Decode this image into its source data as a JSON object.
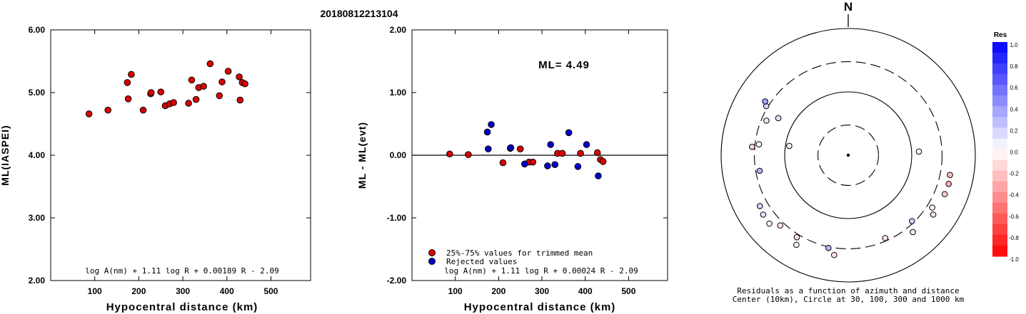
{
  "figure": {
    "title": "20180812213104"
  },
  "chart_data": [
    {
      "type": "scatter",
      "xlabel": "Hypocentral distance (km)",
      "ylabel": "ML(IASPEI)",
      "xlim": [
        0,
        590
      ],
      "ylim": [
        2.0,
        6.0
      ],
      "x_ticks": [
        100,
        200,
        300,
        400,
        500
      ],
      "y_ticks": [
        "2.00",
        "3.00",
        "4.00",
        "5.00",
        "6.00"
      ],
      "grid": false,
      "formula": "log A(nm) + 1.11 log R + 0.00189 R - 2.09",
      "marker_color": "#dd0000",
      "points": [
        [
          87,
          4.66
        ],
        [
          130,
          4.72
        ],
        [
          174,
          5.16
        ],
        [
          176,
          4.9
        ],
        [
          183,
          5.29
        ],
        [
          210,
          4.72
        ],
        [
          227,
          4.98
        ],
        [
          228,
          5.0
        ],
        [
          250,
          5.01
        ],
        [
          260,
          4.79
        ],
        [
          270,
          4.82
        ],
        [
          279,
          4.84
        ],
        [
          313,
          4.83
        ],
        [
          320,
          5.2
        ],
        [
          330,
          4.89
        ],
        [
          336,
          5.08
        ],
        [
          347,
          5.1
        ],
        [
          362,
          5.46
        ],
        [
          383,
          4.95
        ],
        [
          389,
          5.17
        ],
        [
          403,
          5.34
        ],
        [
          428,
          5.25
        ],
        [
          430,
          4.88
        ],
        [
          435,
          5.16
        ],
        [
          441,
          5.14
        ]
      ]
    },
    {
      "type": "scatter",
      "xlabel": "Hypocentral distance (km)",
      "ylabel": "ML - ML(evt)",
      "xlim": [
        0,
        590
      ],
      "ylim": [
        -2.0,
        2.0
      ],
      "x_ticks": [
        100,
        200,
        300,
        400,
        500
      ],
      "y_ticks": [
        "-2.00",
        "-1.00",
        "0.00",
        "1.00",
        "2.00"
      ],
      "grid": false,
      "annotation": "ML= 4.49",
      "formula": "log A(nm) + 1.11 log R + 0.00024 R - 2.09",
      "legend": [
        {
          "label": "25%-75% values for trimmed mean",
          "color": "#dd0000"
        },
        {
          "label": "Rejected values",
          "color": "#0000cc"
        }
      ],
      "series": [
        {
          "name": "25%-75% values for trimmed mean",
          "color": "#dd0000",
          "points": [
            [
              87,
              0.02
            ],
            [
              130,
              0.01
            ],
            [
              210,
              -0.12
            ],
            [
              227,
              0.11
            ],
            [
              250,
              0.1
            ],
            [
              270,
              -0.11
            ],
            [
              279,
              -0.11
            ],
            [
              336,
              0.03
            ],
            [
              347,
              0.03
            ],
            [
              389,
              0.03
            ],
            [
              428,
              0.04
            ],
            [
              435,
              -0.07
            ],
            [
              441,
              -0.1
            ]
          ]
        },
        {
          "name": "Rejected values",
          "color": "#0000cc",
          "points": [
            [
              174,
              0.37
            ],
            [
              176,
              0.1
            ],
            [
              183,
              0.49
            ],
            [
              228,
              0.12
            ],
            [
              260,
              -0.14
            ],
            [
              313,
              -0.17
            ],
            [
              320,
              0.17
            ],
            [
              330,
              -0.15
            ],
            [
              362,
              0.36
            ],
            [
              383,
              -0.18
            ],
            [
              403,
              0.17
            ],
            [
              430,
              -0.33
            ]
          ]
        }
      ]
    },
    {
      "type": "polar",
      "north_label": "N",
      "caption_line1": "Residuals as a function of azimuth and distance",
      "caption_line2": "Center (10km), Circle at 30, 100, 300 and 1000 km",
      "circles_km": [
        10,
        30,
        100,
        300,
        1000
      ],
      "colorbar": {
        "title": "Res",
        "ticks": [
          "1.0",
          "0.8",
          "0.6",
          "0.4",
          "0.2",
          "0.0",
          "-0.2",
          "-0.4",
          "-0.6",
          "-0.8",
          "-1.0"
        ],
        "max_color": "#0000ff",
        "min_color": "#ff0000"
      },
      "stations": [
        {
          "az": 298,
          "dist": 176,
          "res": 0.1
        },
        {
          "az": 301,
          "dist": 320,
          "res": 0.17
        },
        {
          "az": 293,
          "dist": 250,
          "res": 0.1
        },
        {
          "az": 279,
          "dist": 87,
          "res": 0.02
        },
        {
          "az": 275,
          "dist": 330,
          "res": -0.15
        },
        {
          "az": 277,
          "dist": 260,
          "res": 0.01
        },
        {
          "az": 303,
          "dist": 362,
          "res": 0.36
        },
        {
          "az": 260,
          "dist": 260,
          "res": 0.3
        },
        {
          "az": 240,
          "dist": 403,
          "res": 0.17
        },
        {
          "az": 235,
          "dist": 430,
          "res": 0.12
        },
        {
          "az": 229,
          "dist": 441,
          "res": 0.03
        },
        {
          "az": 224,
          "dist": 347,
          "res": -0.1
        },
        {
          "az": 212,
          "dist": 336,
          "res": -0.12
        },
        {
          "az": 210,
          "dist": 428,
          "res": 0.04
        },
        {
          "az": 192,
          "dist": 313,
          "res": 0.3
        },
        {
          "az": 188,
          "dist": 389,
          "res": -0.1
        },
        {
          "az": 156,
          "dist": 270,
          "res": -0.11
        },
        {
          "az": 136,
          "dist": 279,
          "res": 0.2
        },
        {
          "az": 140,
          "dist": 383,
          "res": -0.1
        },
        {
          "az": 125,
          "dist": 430,
          "res": -0.12
        },
        {
          "az": 122,
          "dist": 362,
          "res": -0.07
        },
        {
          "az": 112,
          "dist": 435,
          "res": -0.2
        },
        {
          "az": 106,
          "dist": 441,
          "res": -0.3
        },
        {
          "az": 101,
          "dist": 428,
          "res": -0.25
        },
        {
          "az": 87,
          "dist": 130,
          "res": 0.01
        }
      ]
    }
  ]
}
